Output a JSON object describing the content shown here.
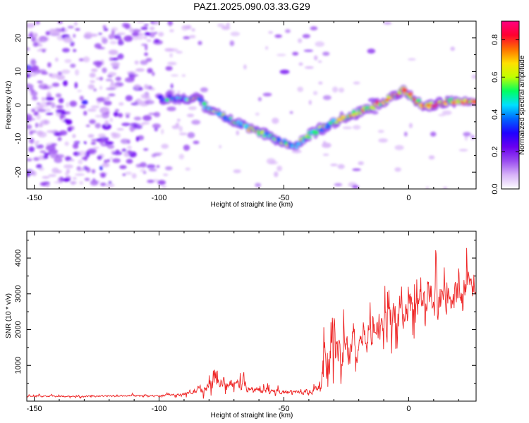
{
  "title": "PAZ1.2025.090.03.33.G29",
  "chart_data": [
    {
      "type": "heatmap",
      "xlabel": "Height of straight line (km)",
      "ylabel": "Frequency (Hz)",
      "xlim": [
        -153,
        27
      ],
      "ylim": [
        -25,
        25
      ],
      "xticks": [
        -150,
        -100,
        -50,
        0
      ],
      "yticks": [
        -20,
        -10,
        0,
        10,
        20
      ],
      "ridge": {
        "x": [
          -100,
          -90,
          -85,
          -80,
          -70,
          -60,
          -50,
          -45,
          -40,
          -35,
          -30,
          -20,
          -10,
          -5,
          -2,
          0,
          5,
          10,
          15,
          20,
          27
        ],
        "y": [
          2,
          2,
          2,
          -1,
          -5,
          -8,
          -11,
          -12,
          -9,
          -7,
          -5,
          -2,
          1,
          3,
          5,
          3,
          0,
          0,
          1,
          1,
          1
        ]
      },
      "colorbar": {
        "label": "Normalized spectral amplitude",
        "range": [
          0,
          0.9
        ],
        "ticks": [
          0.0,
          0.2,
          0.4,
          0.6,
          0.8
        ],
        "tick_labels": [
          "0.0",
          "0.2",
          "0.4",
          "0.6",
          "0.8"
        ],
        "colors": [
          "#ffffff",
          "#d8b4f8",
          "#9a4cf0",
          "#6a00f0",
          "#2000ff",
          "#0064ff",
          "#00e0ff",
          "#00ff60",
          "#c0ff00",
          "#ffe000",
          "#ff7000",
          "#ff0030",
          "#ff0080"
        ]
      }
    },
    {
      "type": "line",
      "xlabel": "Height of straight line (km)",
      "ylabel": "SNR (10 * v/v)",
      "xlim": [
        -153,
        27
      ],
      "ylim": [
        0,
        4750
      ],
      "xticks": [
        -150,
        -100,
        -50,
        0
      ],
      "yticks": [
        1000,
        2000,
        3000,
        4000
      ],
      "line_color": "#ee2222",
      "envelope": {
        "x": [
          -153,
          -100,
          -90,
          -85,
          -78,
          -73,
          -68,
          -60,
          -50,
          -40,
          -36,
          -34,
          -32,
          -30,
          -25,
          -20,
          -15,
          -10,
          -5,
          0,
          5,
          10,
          15,
          20,
          25,
          27
        ],
        "base": [
          130,
          150,
          200,
          300,
          450,
          550,
          450,
          300,
          250,
          250,
          350,
          900,
          1200,
          1300,
          1400,
          1700,
          2000,
          2200,
          2400,
          2600,
          2700,
          2800,
          2900,
          3000,
          3200,
          3400
        ],
        "amp": [
          60,
          60,
          100,
          250,
          500,
          400,
          350,
          220,
          150,
          150,
          300,
          1400,
          1800,
          1500,
          1300,
          1200,
          1200,
          1300,
          1400,
          1300,
          1300,
          1200,
          1100,
          1100,
          1300,
          1300
        ]
      }
    }
  ]
}
